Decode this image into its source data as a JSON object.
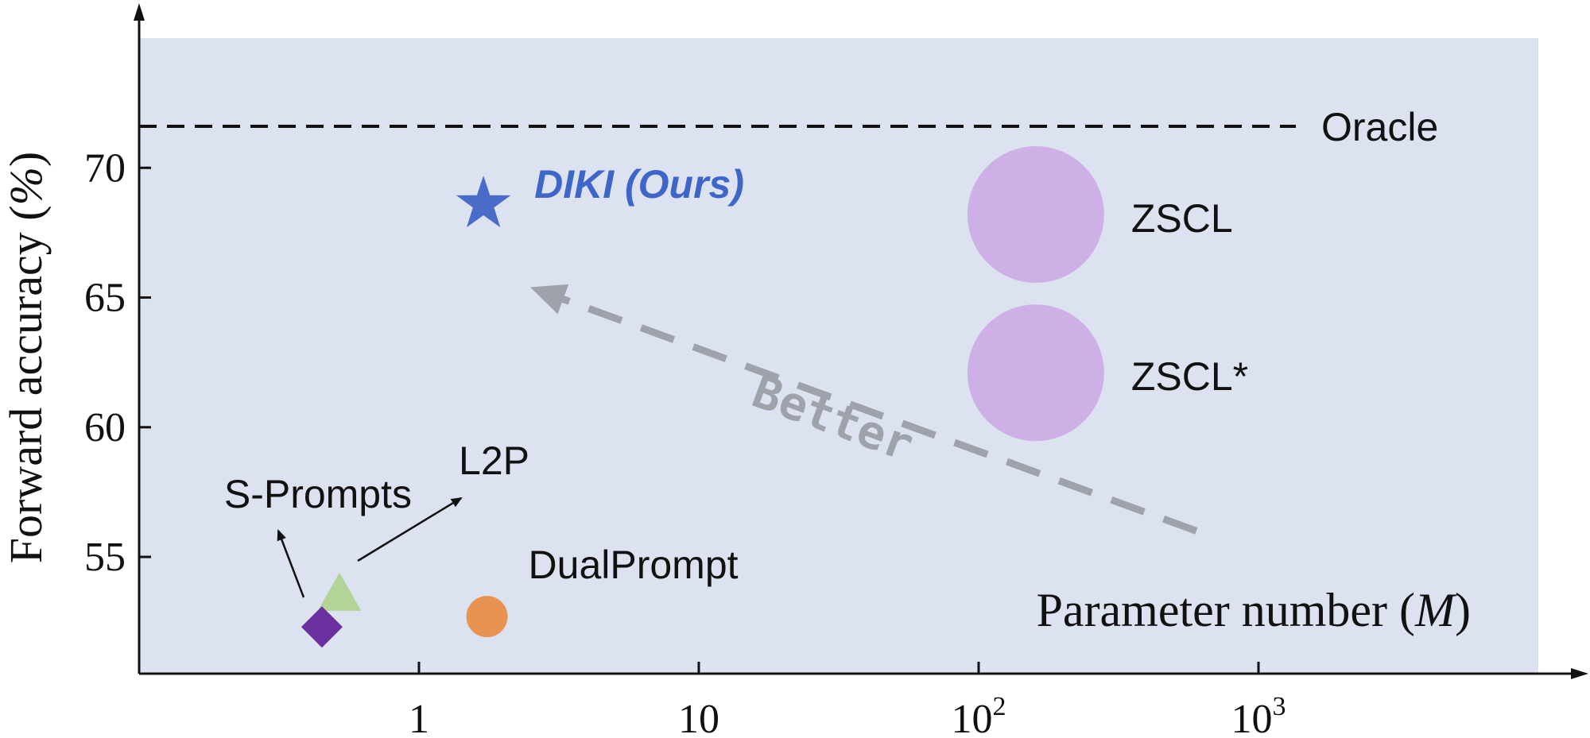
{
  "chart_data": {
    "type": "scatter",
    "xlabel_text": "Parameter number (",
    "xlabel_unit": "M",
    "xlabel_close": ")",
    "ylabel_text": "Forward accuracy (",
    "ylabel_unit": "%",
    "ylabel_close": ")",
    "x_scale": "log",
    "x_ticks": [
      {
        "value": 1,
        "base": "1",
        "exp": ""
      },
      {
        "value": 10,
        "base": "10",
        "exp": ""
      },
      {
        "value": 100,
        "base": "10",
        "exp": "2"
      },
      {
        "value": 1000,
        "base": "10",
        "exp": "3"
      }
    ],
    "y_ticks": [
      55,
      60,
      65,
      70
    ],
    "xlim": [
      0.1,
      10000
    ],
    "ylim": [
      50.5,
      75
    ],
    "background_color": "#dde2f1",
    "oracle": {
      "label": "Oracle",
      "y": 71.6
    },
    "points": [
      {
        "name": "DIKI (Ours)",
        "x": 1.7,
        "y": 68.6,
        "marker": "star",
        "color": "#4a6cc8",
        "label_color": "#3e66c9"
      },
      {
        "name": "ZSCL",
        "x": 160,
        "y": 68.2,
        "marker": "circle-large",
        "color": "#cdb1e6",
        "label_color": "#111111"
      },
      {
        "name": "ZSCL*",
        "x": 160,
        "y": 62.1,
        "marker": "circle-large",
        "color": "#cdb1e6",
        "label_color": "#111111"
      },
      {
        "name": "DualPrompt",
        "x": 1.75,
        "y": 52.7,
        "marker": "circle",
        "color": "#e89350",
        "label_color": "#111111"
      },
      {
        "name": "L2P",
        "x": 0.52,
        "y": 53.6,
        "marker": "triangle",
        "color": "#b2d496",
        "label_color": "#111111"
      },
      {
        "name": "S-Prompts",
        "x": 0.45,
        "y": 52.3,
        "marker": "diamond",
        "color": "#6b2fa0",
        "label_color": "#111111"
      }
    ],
    "better_arrow": {
      "label": "Better",
      "color": "#9ea2aa",
      "from": [
        600,
        56
      ],
      "to": [
        2.5,
        65.4
      ]
    }
  }
}
